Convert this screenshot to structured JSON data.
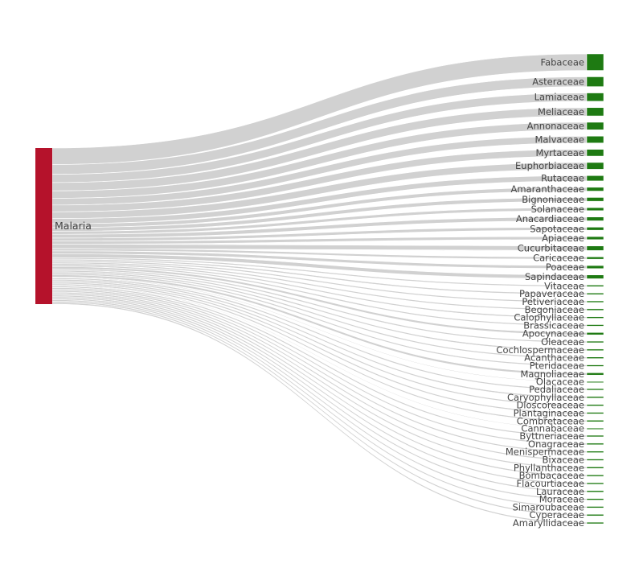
{
  "chart_data": {
    "type": "sankey",
    "title": "",
    "source": {
      "label": "Malaria",
      "color": "#b5122b"
    },
    "target_color": "#1e7a12",
    "link_color": "#cccccc",
    "links": [
      {
        "target": "Fabaceae",
        "value": 22
      },
      {
        "target": "Asteraceae",
        "value": 13
      },
      {
        "target": "Lamiaceae",
        "value": 11
      },
      {
        "target": "Meliaceae",
        "value": 11
      },
      {
        "target": "Annonaceae",
        "value": 10
      },
      {
        "target": "Malvaceae",
        "value": 9
      },
      {
        "target": "Myrtaceae",
        "value": 9
      },
      {
        "target": "Euphorbiaceae",
        "value": 9
      },
      {
        "target": "Rutaceae",
        "value": 7
      },
      {
        "target": "Amaranthaceae",
        "value": 5
      },
      {
        "target": "Bignoniaceae",
        "value": 5
      },
      {
        "target": "Solanaceae",
        "value": 4
      },
      {
        "target": "Anacardiaceae",
        "value": 5
      },
      {
        "target": "Sapotaceae",
        "value": 4
      },
      {
        "target": "Apiaceae",
        "value": 4
      },
      {
        "target": "Cucurbitaceae",
        "value": 6
      },
      {
        "target": "Caricaceae",
        "value": 3
      },
      {
        "target": "Poaceae",
        "value": 4
      },
      {
        "target": "Sapindaceae",
        "value": 5
      },
      {
        "target": "Vitaceae",
        "value": 2
      },
      {
        "target": "Papaveraceae",
        "value": 2
      },
      {
        "target": "Petiveriaceae",
        "value": 2
      },
      {
        "target": "Begoniaceae",
        "value": 2
      },
      {
        "target": "Calophyllaceae",
        "value": 2
      },
      {
        "target": "Brassicaceae",
        "value": 2
      },
      {
        "target": "Apocynaceae",
        "value": 3
      },
      {
        "target": "Oleaceae",
        "value": 2
      },
      {
        "target": "Cochlospermaceae",
        "value": 2
      },
      {
        "target": "Acanthaceae",
        "value": 2
      },
      {
        "target": "Pteridaceae",
        "value": 2
      },
      {
        "target": "Magnoliaceae",
        "value": 3
      },
      {
        "target": "Olacaceae",
        "value": 1
      },
      {
        "target": "Pedaliaceae",
        "value": 2
      },
      {
        "target": "Caryophyllaceae",
        "value": 2
      },
      {
        "target": "Dioscoreaceae",
        "value": 2
      },
      {
        "target": "Plantaginaceae",
        "value": 2
      },
      {
        "target": "Combretaceae",
        "value": 2
      },
      {
        "target": "Cannabaceae",
        "value": 1
      },
      {
        "target": "Byttneriaceae",
        "value": 2
      },
      {
        "target": "Onagraceae",
        "value": 2
      },
      {
        "target": "Menispermaceae",
        "value": 2
      },
      {
        "target": "Bixaceae",
        "value": 2
      },
      {
        "target": "Phyllanthaceae",
        "value": 2
      },
      {
        "target": "Bombacaceae",
        "value": 2
      },
      {
        "target": "Flacourtiaceae",
        "value": 2
      },
      {
        "target": "Lauraceae",
        "value": 2
      },
      {
        "target": "Moraceae",
        "value": 2
      },
      {
        "target": "Simaroubaceae",
        "value": 2
      },
      {
        "target": "Cyperaceae",
        "value": 2
      },
      {
        "target": "Amaryllidaceae",
        "value": 2
      }
    ]
  }
}
